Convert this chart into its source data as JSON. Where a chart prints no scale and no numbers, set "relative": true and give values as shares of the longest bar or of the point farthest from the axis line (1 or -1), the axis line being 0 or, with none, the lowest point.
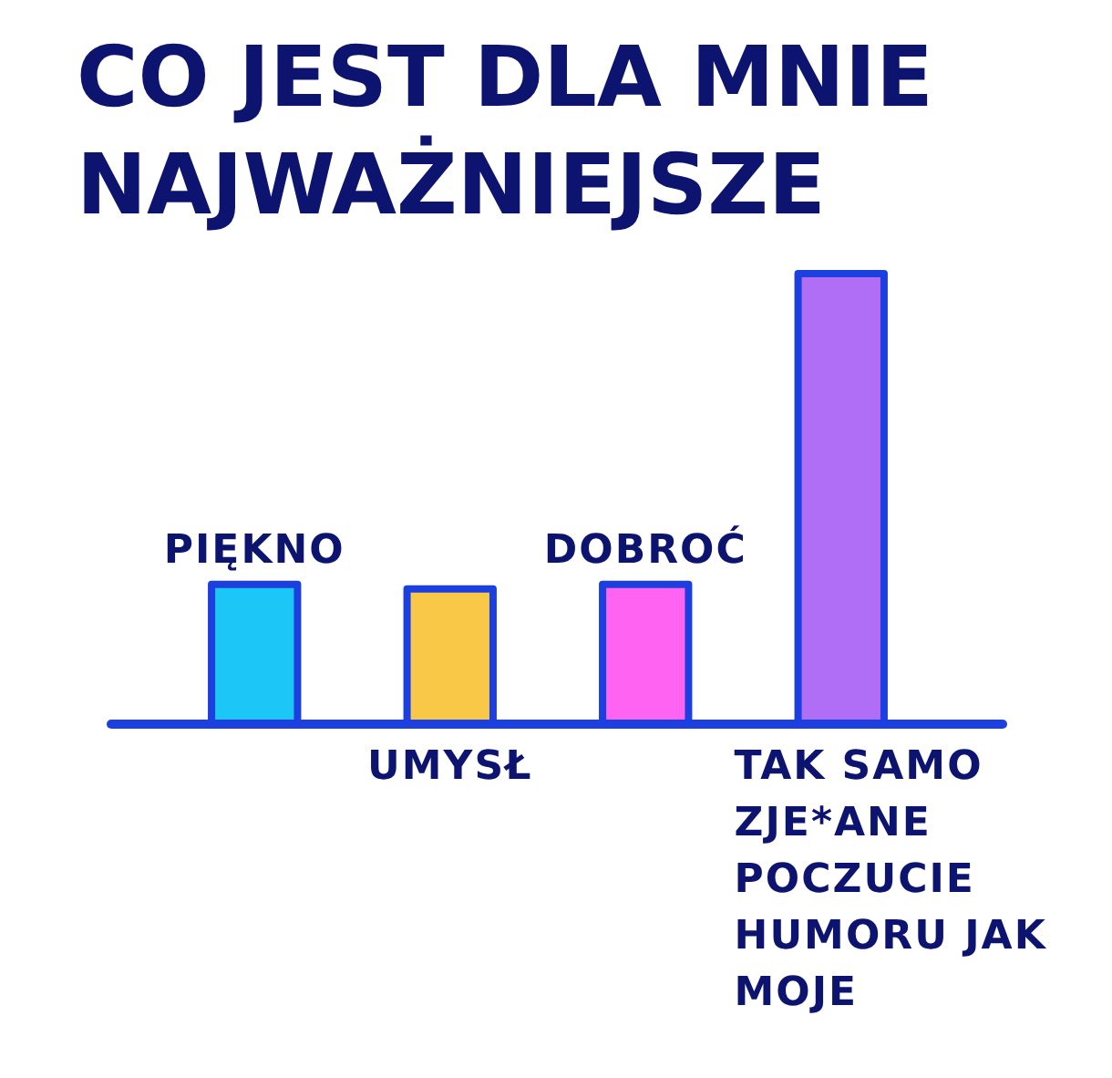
{
  "chart_data": {
    "type": "bar",
    "title": "CO JEST DLA MNIE NAJWAŻNIEJSZE",
    "categories": [
      "PIĘKNO",
      "UMYSŁ",
      "DOBROĆ",
      "TAK SAMO ZJE*ANE POCZUCIE HUMORU JAK MOJE"
    ],
    "values": [
      0.31,
      0.3,
      0.31,
      1
    ],
    "colors": [
      "#1cc6f6",
      "#f9c846",
      "#ff63f2",
      "#b06ef7"
    ],
    "relative": true
  }
}
